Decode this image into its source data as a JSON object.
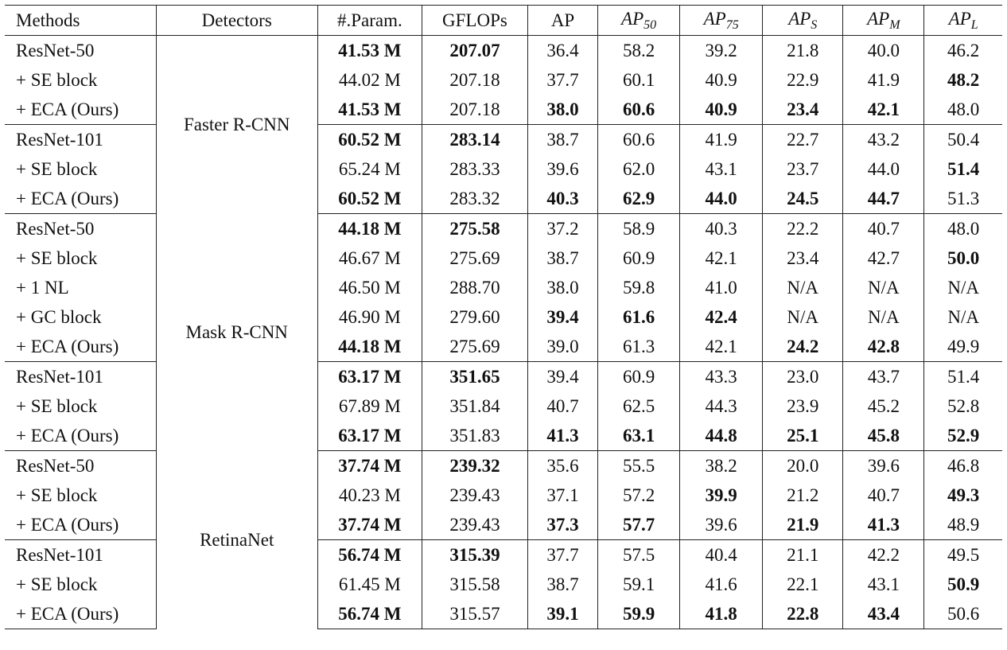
{
  "headers": [
    "Methods",
    "Detectors",
    "#.Param.",
    "GFLOPs",
    "AP",
    "AP",
    "AP",
    "AP",
    "AP",
    "AP"
  ],
  "header_subs": [
    "",
    "",
    "",
    "",
    "",
    "50",
    "75",
    "S",
    "M",
    "L"
  ],
  "detectors": [
    {
      "name": "Faster R-CNN",
      "rows": [
        {
          "m": "ResNet-50",
          "v": [
            "41.53 M",
            "207.07",
            "36.4",
            "58.2",
            "39.2",
            "21.8",
            "40.0",
            "46.2"
          ],
          "bold": [
            true,
            true,
            false,
            false,
            false,
            false,
            false,
            false
          ]
        },
        {
          "m": "+ SE block",
          "v": [
            "44.02 M",
            "207.18",
            "37.7",
            "60.1",
            "40.9",
            "22.9",
            "41.9",
            "48.2"
          ],
          "bold": [
            false,
            false,
            false,
            false,
            false,
            false,
            false,
            true
          ]
        },
        {
          "m": "+ ECA (Ours)",
          "v": [
            "41.53 M",
            "207.18",
            "38.0",
            "60.6",
            "40.9",
            "23.4",
            "42.1",
            "48.0"
          ],
          "bold": [
            true,
            false,
            true,
            true,
            true,
            true,
            true,
            false
          ]
        },
        {
          "m": "ResNet-101",
          "v": [
            "60.52 M",
            "283.14",
            "38.7",
            "60.6",
            "41.9",
            "22.7",
            "43.2",
            "50.4"
          ],
          "bold": [
            true,
            true,
            false,
            false,
            false,
            false,
            false,
            false
          ]
        },
        {
          "m": "+ SE block",
          "v": [
            "65.24 M",
            "283.33",
            "39.6",
            "62.0",
            "43.1",
            "23.7",
            "44.0",
            "51.4"
          ],
          "bold": [
            false,
            false,
            false,
            false,
            false,
            false,
            false,
            true
          ]
        },
        {
          "m": "+ ECA (Ours)",
          "v": [
            "60.52 M",
            "283.32",
            "40.3",
            "62.9",
            "44.0",
            "24.5",
            "44.7",
            "51.3"
          ],
          "bold": [
            true,
            false,
            true,
            true,
            true,
            true,
            true,
            false
          ]
        }
      ],
      "split": 3
    },
    {
      "name": "Mask R-CNN",
      "rows": [
        {
          "m": "ResNet-50",
          "v": [
            "44.18 M",
            "275.58",
            "37.2",
            "58.9",
            "40.3",
            "22.2",
            "40.7",
            "48.0"
          ],
          "bold": [
            true,
            true,
            false,
            false,
            false,
            false,
            false,
            false
          ]
        },
        {
          "m": "+ SE block",
          "v": [
            "46.67 M",
            "275.69",
            "38.7",
            "60.9",
            "42.1",
            "23.4",
            "42.7",
            "50.0"
          ],
          "bold": [
            false,
            false,
            false,
            false,
            false,
            false,
            false,
            true
          ]
        },
        {
          "m": "+ 1 NL",
          "v": [
            "46.50 M",
            "288.70",
            "38.0",
            "59.8",
            "41.0",
            "N/A",
            "N/A",
            "N/A"
          ],
          "bold": [
            false,
            false,
            false,
            false,
            false,
            false,
            false,
            false
          ]
        },
        {
          "m": "+ GC block",
          "v": [
            "46.90 M",
            "279.60",
            "39.4",
            "61.6",
            "42.4",
            "N/A",
            "N/A",
            "N/A"
          ],
          "bold": [
            false,
            false,
            true,
            true,
            true,
            false,
            false,
            false
          ]
        },
        {
          "m": "+ ECA (Ours)",
          "v": [
            "44.18 M",
            "275.69",
            "39.0",
            "61.3",
            "42.1",
            "24.2",
            "42.8",
            "49.9"
          ],
          "bold": [
            true,
            false,
            false,
            false,
            false,
            true,
            true,
            false
          ]
        },
        {
          "m": "ResNet-101",
          "v": [
            "63.17 M",
            "351.65",
            "39.4",
            "60.9",
            "43.3",
            "23.0",
            "43.7",
            "51.4"
          ],
          "bold": [
            true,
            true,
            false,
            false,
            false,
            false,
            false,
            false
          ]
        },
        {
          "m": "+ SE block",
          "v": [
            "67.89 M",
            "351.84",
            "40.7",
            "62.5",
            "44.3",
            "23.9",
            "45.2",
            "52.8"
          ],
          "bold": [
            false,
            false,
            false,
            false,
            false,
            false,
            false,
            false
          ]
        },
        {
          "m": "+ ECA (Ours)",
          "v": [
            "63.17 M",
            "351.83",
            "41.3",
            "63.1",
            "44.8",
            "25.1",
            "45.8",
            "52.9"
          ],
          "bold": [
            true,
            false,
            true,
            true,
            true,
            true,
            true,
            true
          ]
        }
      ],
      "split": 5
    },
    {
      "name": "RetinaNet",
      "rows": [
        {
          "m": "ResNet-50",
          "v": [
            "37.74 M",
            "239.32",
            "35.6",
            "55.5",
            "38.2",
            "20.0",
            "39.6",
            "46.8"
          ],
          "bold": [
            true,
            true,
            false,
            false,
            false,
            false,
            false,
            false
          ]
        },
        {
          "m": "+ SE block",
          "v": [
            "40.23 M",
            "239.43",
            "37.1",
            "57.2",
            "39.9",
            "21.2",
            "40.7",
            "49.3"
          ],
          "bold": [
            false,
            false,
            false,
            false,
            true,
            false,
            false,
            true
          ]
        },
        {
          "m": "+ ECA (Ours)",
          "v": [
            "37.74 M",
            "239.43",
            "37.3",
            "57.7",
            "39.6",
            "21.9",
            "41.3",
            "48.9"
          ],
          "bold": [
            true,
            false,
            true,
            true,
            false,
            true,
            true,
            false
          ]
        },
        {
          "m": "ResNet-101",
          "v": [
            "56.74 M",
            "315.39",
            "37.7",
            "57.5",
            "40.4",
            "21.1",
            "42.2",
            "49.5"
          ],
          "bold": [
            true,
            true,
            false,
            false,
            false,
            false,
            false,
            false
          ]
        },
        {
          "m": "+ SE block",
          "v": [
            "61.45 M",
            "315.58",
            "38.7",
            "59.1",
            "41.6",
            "22.1",
            "43.1",
            "50.9"
          ],
          "bold": [
            false,
            false,
            false,
            false,
            false,
            false,
            false,
            true
          ]
        },
        {
          "m": "+ ECA (Ours)",
          "v": [
            "56.74 M",
            "315.57",
            "39.1",
            "59.9",
            "41.8",
            "22.8",
            "43.4",
            "50.6"
          ],
          "bold": [
            true,
            false,
            true,
            true,
            true,
            true,
            true,
            false
          ]
        }
      ],
      "split": 3
    }
  ]
}
